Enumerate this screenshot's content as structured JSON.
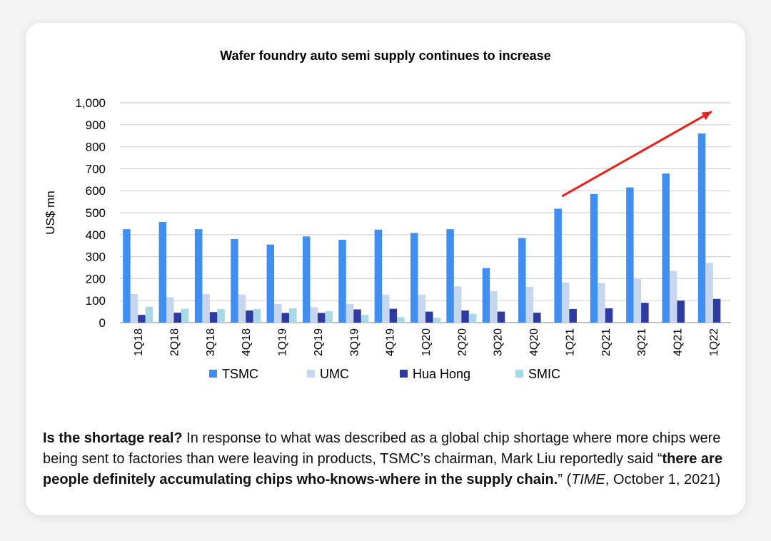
{
  "chart_data": {
    "type": "bar",
    "title": "Wafer foundry auto semi supply continues to increase",
    "ylabel": "US$ mn",
    "xlabel": "",
    "ylim": [
      0,
      1000
    ],
    "yticks": [
      0,
      100,
      200,
      300,
      400,
      500,
      600,
      700,
      800,
      900,
      1000
    ],
    "ytick_labels": [
      "0",
      "100",
      "200",
      "300",
      "400",
      "500",
      "600",
      "700",
      "800",
      "900",
      "1,000"
    ],
    "grid": true,
    "legend_position": "bottom",
    "categories": [
      "1Q18",
      "2Q18",
      "3Q18",
      "4Q18",
      "1Q19",
      "2Q19",
      "3Q19",
      "4Q19",
      "1Q20",
      "2Q20",
      "3Q20",
      "4Q20",
      "1Q21",
      "2Q21",
      "3Q21",
      "4Q21",
      "1Q22"
    ],
    "series": [
      {
        "name": "TSMC",
        "color": "#3f8ef0",
        "values": [
          425,
          458,
          425,
          380,
          355,
          392,
          377,
          423,
          408,
          425,
          248,
          385,
          518,
          585,
          615,
          678,
          860
        ]
      },
      {
        "name": "UMC",
        "color": "#c6d6ee",
        "values": [
          130,
          115,
          130,
          127,
          85,
          70,
          85,
          127,
          127,
          165,
          143,
          162,
          182,
          180,
          200,
          235,
          272
        ]
      },
      {
        "name": "Hua Hong",
        "color": "#2e3aa0",
        "values": [
          35,
          45,
          48,
          55,
          44,
          44,
          60,
          63,
          50,
          55,
          50,
          45,
          62,
          65,
          90,
          100,
          108
        ]
      },
      {
        "name": "SMIC",
        "color": "#a9d9e6",
        "values": [
          72,
          63,
          62,
          62,
          65,
          52,
          35,
          25,
          22,
          40,
          0,
          0,
          0,
          0,
          0,
          0,
          0
        ]
      }
    ],
    "annotations": [
      {
        "type": "arrow",
        "color": "#e8201c",
        "from": {
          "x": "1Q21",
          "y": 575
        },
        "to": {
          "x": "1Q22",
          "y": 960
        }
      }
    ]
  },
  "caption": {
    "q": "Is the shortage real?",
    "body": " In response to what was described as a global chip shortage where more chips were being sent to factories than were leaving in products, TSMC’s chairman, Mark Liu reportedly said “",
    "quote": "there are people definitely accumulating chips who-knows-where in the supply chain.",
    "after_quote": "” (",
    "source": "TIME",
    "date": ", October 1, 2021)"
  }
}
